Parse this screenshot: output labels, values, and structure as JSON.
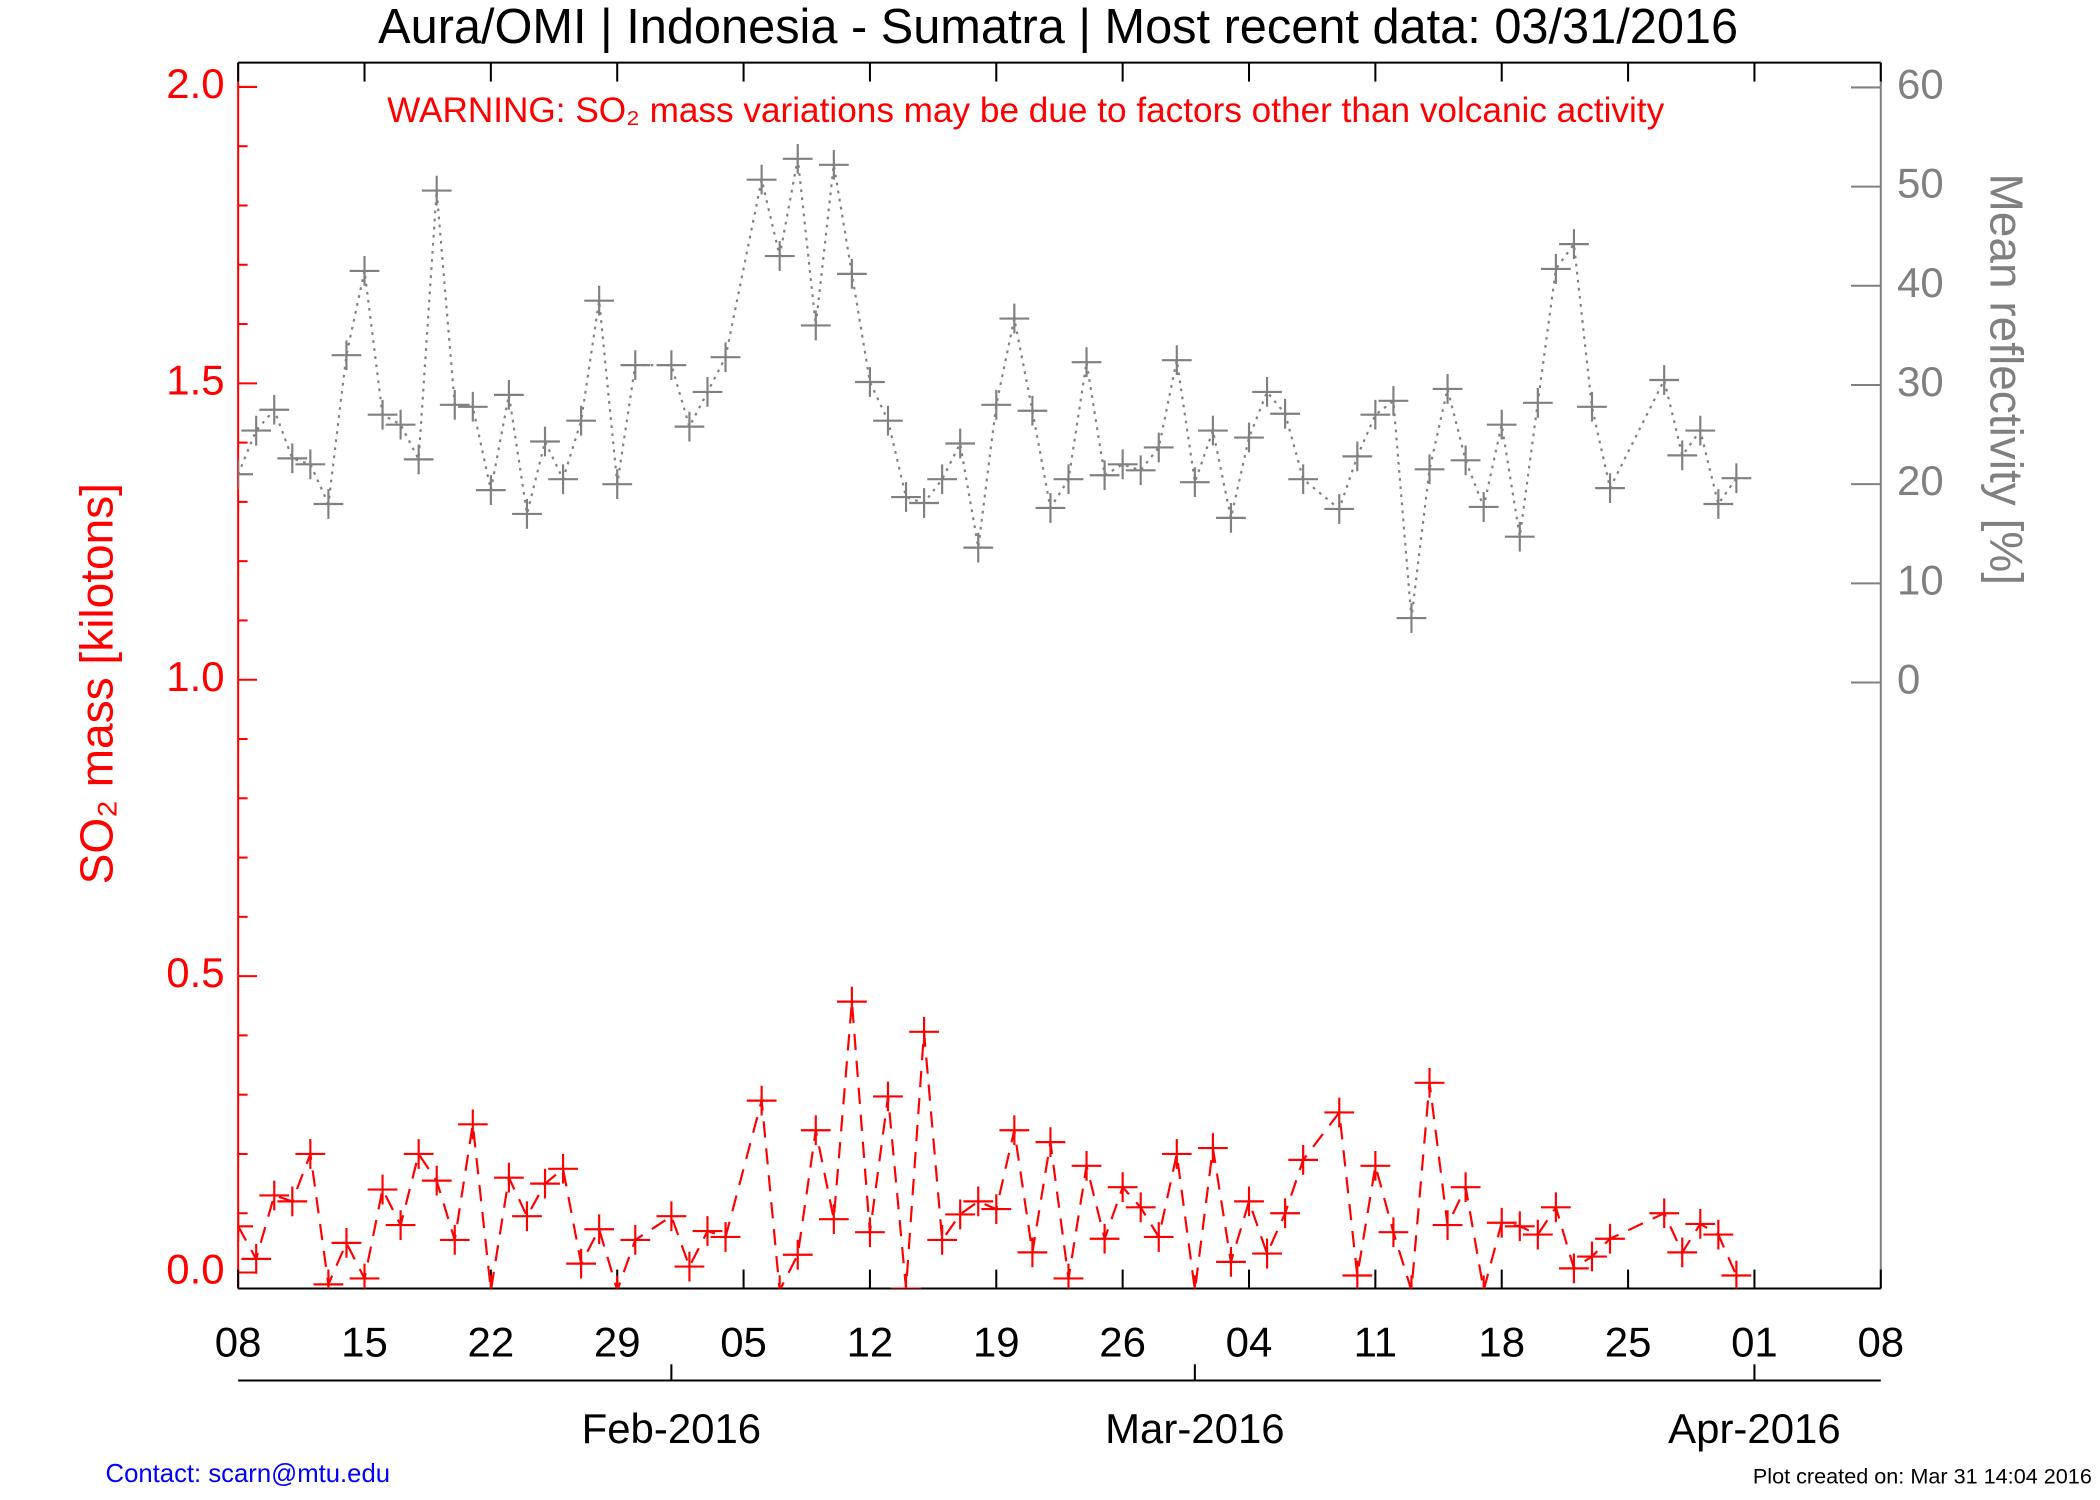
{
  "chart_data": {
    "type": "line",
    "title": "Aura/OMI | Indonesia - Sumatra | Most recent data: 03/31/2016",
    "annotation": "WARNING: SO₂ mass variations may be due to factors other than volcanic activity",
    "ylabel": "SO₂ mass [kilotons]",
    "y2label": "Mean reflectivity [%]",
    "contact": "Contact: scarn@mtu.edu",
    "created": "Plot created on: Mar 31 14:04 2016",
    "x": [
      "2016-01-08",
      "2016-01-09",
      "2016-01-10",
      "2016-01-11",
      "2016-01-12",
      "2016-01-13",
      "2016-01-14",
      "2016-01-15",
      "2016-01-16",
      "2016-01-17",
      "2016-01-18",
      "2016-01-19",
      "2016-01-20",
      "2016-01-21",
      "2016-01-22",
      "2016-01-23",
      "2016-01-24",
      "2016-01-25",
      "2016-01-26",
      "2016-01-27",
      "2016-01-28",
      "2016-01-29",
      "2016-01-30",
      "2016-02-01",
      "2016-02-02",
      "2016-02-03",
      "2016-02-04",
      "2016-02-06",
      "2016-02-07",
      "2016-02-08",
      "2016-02-09",
      "2016-02-10",
      "2016-02-11",
      "2016-02-12",
      "2016-02-13",
      "2016-02-14",
      "2016-02-15",
      "2016-02-16",
      "2016-02-17",
      "2016-02-18",
      "2016-02-19",
      "2016-02-20",
      "2016-02-21",
      "2016-02-22",
      "2016-02-23",
      "2016-02-24",
      "2016-02-25",
      "2016-02-26",
      "2016-02-27",
      "2016-02-28",
      "2016-02-29",
      "2016-03-01",
      "2016-03-02",
      "2016-03-03",
      "2016-03-04",
      "2016-03-05",
      "2016-03-06",
      "2016-03-07",
      "2016-03-09",
      "2016-03-10",
      "2016-03-11",
      "2016-03-12",
      "2016-03-13",
      "2016-03-14",
      "2016-03-15",
      "2016-03-16",
      "2016-03-17",
      "2016-03-18",
      "2016-03-19",
      "2016-03-20",
      "2016-03-21",
      "2016-03-22",
      "2016-03-23",
      "2016-03-24",
      "2016-03-27",
      "2016-03-28",
      "2016-03-29",
      "2016-03-30",
      "2016-03-31"
    ],
    "series": [
      {
        "color": "#ff0000",
        "line": "dashed",
        "axis": "y",
        "values": [
          0.078,
          0.023,
          0.13,
          0.12,
          0.2,
          -0.02,
          0.05,
          -0.01,
          0.14,
          0.08,
          0.2,
          0.155,
          0.055,
          0.25,
          -0.03,
          0.16,
          0.095,
          0.15,
          0.175,
          0.015,
          0.073,
          -0.03,
          0.055,
          0.095,
          0.01,
          0.07,
          0.06,
          0.29,
          -0.03,
          0.03,
          0.24,
          0.09,
          0.457,
          0.068,
          0.297,
          -0.027,
          0.406,
          0.055,
          0.098,
          0.12,
          0.107,
          0.24,
          0.034,
          0.22,
          -0.01,
          0.18,
          0.057,
          0.144,
          0.11,
          0.06,
          0.2,
          -0.03,
          0.21,
          0.018,
          0.12,
          0.032,
          0.1,
          0.19,
          0.27,
          -0.005,
          0.18,
          0.068,
          -0.03,
          0.32,
          0.08,
          0.144,
          -0.03,
          0.084,
          0.078,
          0.064,
          0.11,
          0.007,
          0.027,
          0.057,
          0.1,
          0.034,
          0.082,
          0.064,
          -0.005
        ]
      },
      {
        "color": "#808080",
        "line": "dotted",
        "axis": "y2",
        "values": [
          21,
          25.4,
          27.5,
          22.6,
          22,
          18,
          33,
          41.5,
          27,
          26,
          22.5,
          49.6,
          28,
          27.8,
          19.4,
          29,
          17,
          24.3,
          20.5,
          26.4,
          38.5,
          20,
          32,
          32,
          25.8,
          29.3,
          32.8,
          50.7,
          43,
          52.8,
          36,
          52.2,
          41.2,
          30.3,
          26.4,
          18.7,
          18.1,
          20.5,
          24.1,
          13.6,
          28,
          36.7,
          27.4,
          17.6,
          20.5,
          32.3,
          20.9,
          22,
          21.4,
          23.7,
          32.5,
          20.2,
          25.4,
          16.6,
          24.7,
          29.3,
          27.1,
          20.5,
          17.5,
          22.8,
          27,
          28.4,
          6.5,
          21.5,
          29.6,
          22.4,
          17.7,
          26,
          14.7,
          28.2,
          41.7,
          44.2,
          27.8,
          19.6,
          30.5,
          22.9,
          25.4,
          18,
          20.6
        ]
      }
    ],
    "xlim": [
      "2016-01-08",
      "2016-04-08"
    ],
    "xticks": [
      {
        "value": "2016-01-08",
        "label": "08"
      },
      {
        "value": "2016-01-15",
        "label": "15"
      },
      {
        "value": "2016-01-22",
        "label": "22"
      },
      {
        "value": "2016-01-29",
        "label": "29"
      },
      {
        "value": "2016-02-05",
        "label": "05"
      },
      {
        "value": "2016-02-12",
        "label": "12"
      },
      {
        "value": "2016-02-19",
        "label": "19"
      },
      {
        "value": "2016-02-26",
        "label": "26"
      },
      {
        "value": "2016-03-04",
        "label": "04"
      },
      {
        "value": "2016-03-11",
        "label": "11"
      },
      {
        "value": "2016-03-18",
        "label": "18"
      },
      {
        "value": "2016-03-25",
        "label": "25"
      },
      {
        "value": "2016-04-01",
        "label": "01"
      },
      {
        "value": "2016-04-08",
        "label": "08"
      }
    ],
    "x2ticks": [
      {
        "value": "2016-02-01",
        "label": "Feb-2016"
      },
      {
        "value": "2016-03-01",
        "label": "Mar-2016"
      },
      {
        "value": "2016-04-01",
        "label": "Apr-2016"
      }
    ],
    "ylim": [
      -0.027,
      2.041
    ],
    "yticks": [
      {
        "value": 0,
        "label": "0.0"
      },
      {
        "value": 0.5,
        "label": "0.5"
      },
      {
        "value": 1,
        "label": "1.0"
      },
      {
        "value": 1.5,
        "label": "1.5"
      },
      {
        "value": 2,
        "label": "2.0"
      }
    ],
    "yminorticks": [
      0.1,
      0.2,
      0.3,
      0.4,
      0.6,
      0.7,
      0.8,
      0.9,
      1.1,
      1.2,
      1.3,
      1.4,
      1.6,
      1.7,
      1.8,
      1.9
    ],
    "y2lim": [
      -61.1,
      62.5
    ],
    "y2ticks": [
      0,
      10,
      20,
      30,
      40,
      50,
      60
    ],
    "ycolor": "#ff0000",
    "y2color": "#808080"
  }
}
